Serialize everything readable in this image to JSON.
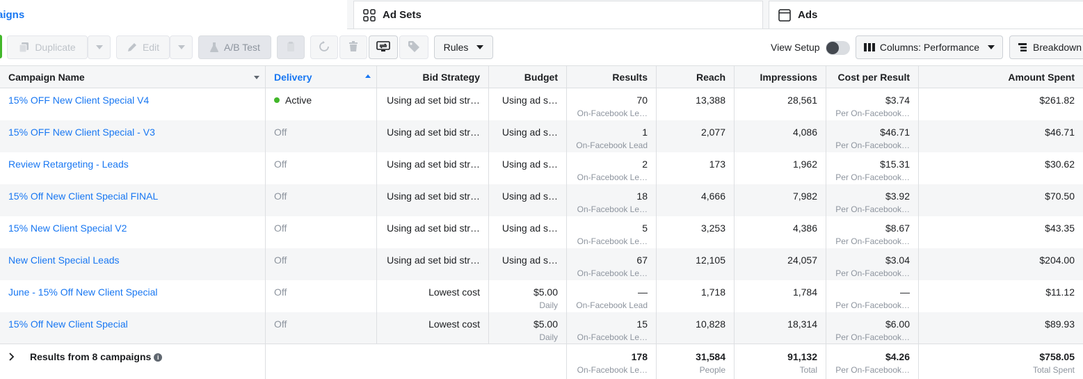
{
  "tabs": [
    {
      "label": "aigns"
    },
    {
      "label": "Ad Sets"
    },
    {
      "label": "Ads"
    }
  ],
  "toolbar": {
    "duplicate_label": "Duplicate",
    "edit_label": "Edit",
    "ab_test_label": "A/B Test",
    "rules_label": "Rules",
    "view_setup_label": "View Setup",
    "columns_label": "Columns: Performance",
    "breakdown_label": "Breakdown"
  },
  "columns": {
    "campaign_name": "Campaign Name",
    "delivery": "Delivery",
    "bid_strategy": "Bid Strategy",
    "budget": "Budget",
    "results": "Results",
    "reach": "Reach",
    "impressions": "Impressions",
    "cost_per_result": "Cost per Result",
    "amount_spent": "Amount Spent"
  },
  "rows": [
    {
      "name": "15% OFF New Client Special V4",
      "delivery": "Active",
      "bid": "Using ad set bid str…",
      "budget": "Using ad s…",
      "budget_sub": "",
      "results": "70",
      "results_sub": "On-Facebook Le…",
      "reach": "13,388",
      "impressions": "28,561",
      "cpr": "$3.74",
      "cpr_sub": "Per On-Facebook…",
      "spent": "$261.82"
    },
    {
      "name": "15% OFF New Client Special - V3",
      "delivery": "Off",
      "bid": "Using ad set bid str…",
      "budget": "Using ad s…",
      "budget_sub": "",
      "results": "1",
      "results_sub": "On-Facebook Lead",
      "reach": "2,077",
      "impressions": "4,086",
      "cpr": "$46.71",
      "cpr_sub": "Per On-Facebook…",
      "spent": "$46.71"
    },
    {
      "name": "Review Retargeting - Leads",
      "delivery": "Off",
      "bid": "Using ad set bid str…",
      "budget": "Using ad s…",
      "budget_sub": "",
      "results": "2",
      "results_sub": "On-Facebook Le…",
      "reach": "173",
      "impressions": "1,962",
      "cpr": "$15.31",
      "cpr_sub": "Per On-Facebook…",
      "spent": "$30.62"
    },
    {
      "name": "15% Off New Client Special FINAL",
      "delivery": "Off",
      "bid": "Using ad set bid str…",
      "budget": "Using ad s…",
      "budget_sub": "",
      "results": "18",
      "results_sub": "On-Facebook Le…",
      "reach": "4,666",
      "impressions": "7,982",
      "cpr": "$3.92",
      "cpr_sub": "Per On-Facebook…",
      "spent": "$70.50"
    },
    {
      "name": "15% New Client Special V2",
      "delivery": "Off",
      "bid": "Using ad set bid str…",
      "budget": "Using ad s…",
      "budget_sub": "",
      "results": "5",
      "results_sub": "On-Facebook Le…",
      "reach": "3,253",
      "impressions": "4,386",
      "cpr": "$8.67",
      "cpr_sub": "Per On-Facebook…",
      "spent": "$43.35"
    },
    {
      "name": "New Client Special Leads",
      "delivery": "Off",
      "bid": "Using ad set bid str…",
      "budget": "Using ad s…",
      "budget_sub": "",
      "results": "67",
      "results_sub": "On-Facebook Le…",
      "reach": "12,105",
      "impressions": "24,057",
      "cpr": "$3.04",
      "cpr_sub": "Per On-Facebook…",
      "spent": "$204.00"
    },
    {
      "name": "June - 15% Off New Client Special",
      "delivery": "Off",
      "bid": "Lowest cost",
      "budget": "$5.00",
      "budget_sub": "Daily",
      "results": "—",
      "results_sub": "On-Facebook Lead",
      "reach": "1,718",
      "impressions": "1,784",
      "cpr": "—",
      "cpr_sub": "Per On-Facebook…",
      "spent": "$11.12"
    },
    {
      "name": "15% Off New Client Special",
      "delivery": "Off",
      "bid": "Lowest cost",
      "budget": "$5.00",
      "budget_sub": "Daily",
      "results": "15",
      "results_sub": "On-Facebook Le…",
      "reach": "10,828",
      "impressions": "18,314",
      "cpr": "$6.00",
      "cpr_sub": "Per On-Facebook…",
      "spent": "$89.93"
    }
  ],
  "summary": {
    "label": "Results from 8 campaigns",
    "results": "178",
    "results_sub": "On-Facebook Le…",
    "reach": "31,584",
    "reach_sub": "People",
    "impressions": "91,132",
    "impressions_sub": "Total",
    "cpr": "$4.26",
    "cpr_sub": "Per On-Facebook…",
    "spent": "$758.05",
    "spent_sub": "Total Spent"
  },
  "colors": {
    "link": "#1877f2",
    "active_dot": "#42b72a",
    "muted": "#8d949e"
  }
}
